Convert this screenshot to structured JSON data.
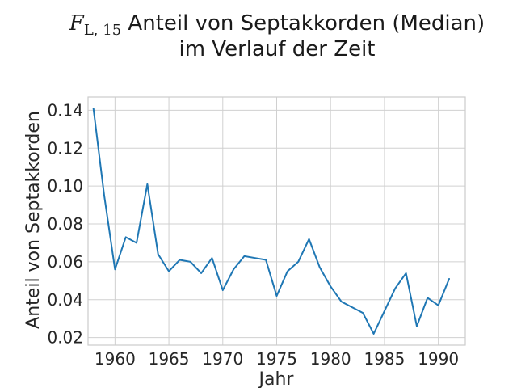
{
  "chart_data": {
    "type": "line",
    "title_math": "F",
    "title_math_sub": "L, 15",
    "title_line1_text": " Anteil von Septakkorden (Median)",
    "title_line2": "im Verlauf der Zeit",
    "xlabel": "Jahr",
    "ylabel": "Anteil von Septakkorden",
    "xlim": [
      1957.5,
      1992.5
    ],
    "ylim": [
      0.016,
      0.147
    ],
    "x_ticks": [
      1960,
      1965,
      1970,
      1975,
      1980,
      1985,
      1990
    ],
    "y_ticks": [
      0.02,
      0.04,
      0.06,
      0.08,
      0.1,
      0.12,
      0.14
    ],
    "y_tick_labels": [
      "0.02",
      "0.04",
      "0.06",
      "0.08",
      "0.10",
      "0.12",
      "0.14"
    ],
    "grid": true,
    "series": [
      {
        "color": "#1f77b4",
        "x": [
          1958,
          1959,
          1960,
          1961,
          1962,
          1963,
          1964,
          1965,
          1966,
          1967,
          1968,
          1969,
          1970,
          1971,
          1972,
          1973,
          1974,
          1975,
          1976,
          1977,
          1978,
          1979,
          1980,
          1981,
          1982,
          1983,
          1984,
          1985,
          1986,
          1987,
          1988,
          1989,
          1990,
          1991
        ],
        "y": [
          0.141,
          0.095,
          0.056,
          0.073,
          0.07,
          0.101,
          0.064,
          0.055,
          0.061,
          0.06,
          0.054,
          0.062,
          0.045,
          0.056,
          0.063,
          0.062,
          0.061,
          0.042,
          0.055,
          0.06,
          0.072,
          0.057,
          0.047,
          0.039,
          0.036,
          0.033,
          0.022,
          0.034,
          0.046,
          0.054,
          0.026,
          0.041,
          0.037,
          0.051
        ]
      }
    ]
  }
}
